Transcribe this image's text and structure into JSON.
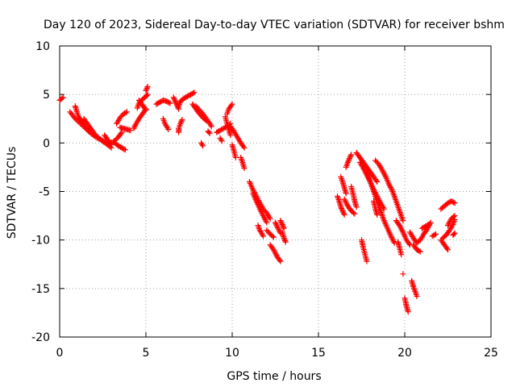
{
  "chart_data": {
    "type": "scatter",
    "title": "Day 120 of 2023, Sidereal Day-to-day VTEC variation (SDTVAR) for receiver bshm",
    "xlabel": "GPS time / hours",
    "ylabel": "SDTVAR / TECUs",
    "xlim": [
      0,
      25
    ],
    "ylim": [
      -20,
      10
    ],
    "xticks": [
      0,
      5,
      10,
      15,
      20,
      25
    ],
    "yticks": [
      -20,
      -15,
      -10,
      -5,
      0,
      5,
      10
    ],
    "grid": true,
    "marker": "+",
    "color": "#ff0000",
    "segments": [
      [
        [
          0.0,
          4.4
        ],
        [
          0.2,
          4.7
        ]
      ],
      [
        [
          0.6,
          3.2
        ],
        [
          0.9,
          2.5
        ],
        [
          1.2,
          2.0
        ],
        [
          1.5,
          1.5
        ],
        [
          1.8,
          1.0
        ],
        [
          2.1,
          0.6
        ],
        [
          2.4,
          0.3
        ],
        [
          2.7,
          -0.1
        ],
        [
          3.0,
          -0.5
        ]
      ],
      [
        [
          0.9,
          3.8
        ],
        [
          1.0,
          3.2
        ],
        [
          1.1,
          2.7
        ],
        [
          1.3,
          2.2
        ],
        [
          1.5,
          1.6
        ],
        [
          1.7,
          1.2
        ]
      ],
      [
        [
          1.4,
          2.5
        ],
        [
          1.6,
          2.0
        ],
        [
          1.8,
          1.5
        ],
        [
          2.0,
          1.0
        ],
        [
          2.2,
          0.6
        ],
        [
          2.5,
          0.2
        ],
        [
          2.8,
          0.0
        ],
        [
          3.1,
          0.1
        ],
        [
          3.4,
          0.6
        ],
        [
          3.6,
          1.1
        ]
      ],
      [
        [
          2.6,
          0.8
        ],
        [
          2.8,
          0.3
        ],
        [
          3.0,
          -0.2
        ]
      ],
      [
        [
          3.2,
          0.0
        ],
        [
          3.4,
          -0.3
        ],
        [
          3.6,
          -0.5
        ],
        [
          3.8,
          -0.7
        ]
      ],
      [
        [
          3.3,
          2.0
        ],
        [
          3.5,
          2.6
        ],
        [
          3.7,
          3.0
        ],
        [
          3.9,
          3.2
        ]
      ],
      [
        [
          3.5,
          1.6
        ],
        [
          3.7,
          1.5
        ],
        [
          3.9,
          1.4
        ],
        [
          4.1,
          1.3
        ]
      ],
      [
        [
          4.3,
          1.5
        ],
        [
          4.4,
          1.9
        ],
        [
          4.6,
          2.5
        ],
        [
          4.8,
          3.0
        ],
        [
          5.0,
          3.5
        ]
      ],
      [
        [
          4.5,
          3.6
        ],
        [
          4.6,
          4.1
        ],
        [
          4.8,
          4.5
        ],
        [
          5.0,
          4.8
        ],
        [
          5.1,
          5.0
        ]
      ],
      [
        [
          4.6,
          4.4
        ],
        [
          4.8,
          3.9
        ],
        [
          5.0,
          3.4
        ]
      ],
      [
        [
          5.0,
          5.4
        ],
        [
          5.1,
          5.8
        ]
      ],
      [
        [
          5.6,
          4.0
        ],
        [
          5.8,
          4.2
        ],
        [
          6.0,
          4.4
        ],
        [
          6.2,
          4.3
        ],
        [
          6.4,
          4.1
        ]
      ],
      [
        [
          6.0,
          2.5
        ],
        [
          6.1,
          2.0
        ],
        [
          6.2,
          1.7
        ],
        [
          6.3,
          1.4
        ]
      ],
      [
        [
          6.6,
          4.7
        ],
        [
          6.7,
          4.3
        ],
        [
          6.8,
          3.9
        ],
        [
          6.9,
          3.5
        ]
      ],
      [
        [
          6.9,
          3.8
        ],
        [
          7.0,
          4.3
        ],
        [
          7.2,
          4.6
        ],
        [
          7.4,
          4.8
        ],
        [
          7.6,
          5.0
        ],
        [
          7.8,
          5.2
        ]
      ],
      [
        [
          7.1,
          2.4
        ],
        [
          7.0,
          2.0
        ],
        [
          6.9,
          1.5
        ],
        [
          6.9,
          1.1
        ]
      ],
      [
        [
          7.7,
          4.0
        ],
        [
          7.9,
          3.5
        ],
        [
          8.1,
          3.0
        ],
        [
          8.3,
          2.6
        ],
        [
          8.5,
          2.3
        ]
      ],
      [
        [
          7.9,
          3.8
        ],
        [
          8.1,
          3.4
        ],
        [
          8.3,
          3.0
        ],
        [
          8.5,
          2.5
        ],
        [
          8.7,
          2.0
        ],
        [
          8.8,
          1.7
        ]
      ],
      [
        [
          8.6,
          1.2
        ],
        [
          8.7,
          1.0
        ]
      ],
      [
        [
          8.2,
          0.0
        ],
        [
          8.3,
          -0.3
        ]
      ],
      [
        [
          9.1,
          1.1
        ],
        [
          9.3,
          1.3
        ],
        [
          9.6,
          1.6
        ],
        [
          9.9,
          2.0
        ]
      ],
      [
        [
          9.3,
          0.5
        ],
        [
          9.4,
          0.2
        ]
      ],
      [
        [
          9.6,
          2.7
        ],
        [
          9.7,
          2.0
        ],
        [
          9.8,
          1.4
        ],
        [
          9.9,
          0.8
        ]
      ],
      [
        [
          9.7,
          3.0
        ],
        [
          9.8,
          3.5
        ],
        [
          10.0,
          4.0
        ]
      ],
      [
        [
          9.9,
          1.7
        ],
        [
          10.1,
          1.2
        ],
        [
          10.3,
          0.6
        ],
        [
          10.5,
          0.0
        ],
        [
          10.7,
          -0.5
        ]
      ],
      [
        [
          10.0,
          -0.2
        ],
        [
          10.1,
          -0.8
        ],
        [
          10.2,
          -1.5
        ]
      ],
      [
        [
          10.5,
          -1.5
        ],
        [
          10.6,
          -2.0
        ],
        [
          10.7,
          -2.6
        ]
      ],
      [
        [
          11.0,
          -4.0
        ],
        [
          11.2,
          -4.8
        ],
        [
          11.4,
          -5.5
        ],
        [
          11.6,
          -6.2
        ],
        [
          11.8,
          -6.8
        ],
        [
          12.0,
          -7.2
        ],
        [
          12.2,
          -7.8
        ]
      ],
      [
        [
          11.2,
          -5.2
        ],
        [
          11.4,
          -6.0
        ],
        [
          11.6,
          -6.8
        ],
        [
          11.8,
          -7.5
        ],
        [
          12.0,
          -8.2
        ]
      ],
      [
        [
          11.5,
          -8.5
        ],
        [
          11.6,
          -9.0
        ],
        [
          11.8,
          -9.6
        ]
      ],
      [
        [
          12.0,
          -9.0
        ],
        [
          12.2,
          -9.4
        ],
        [
          12.4,
          -9.7
        ]
      ],
      [
        [
          12.2,
          -10.5
        ],
        [
          12.4,
          -11.0
        ],
        [
          12.6,
          -11.7
        ],
        [
          12.8,
          -12.2
        ]
      ],
      [
        [
          12.5,
          -8.2
        ],
        [
          12.6,
          -8.6
        ],
        [
          12.8,
          -9.3
        ]
      ],
      [
        [
          12.8,
          -8.0
        ],
        [
          12.9,
          -8.4
        ],
        [
          13.0,
          -8.8
        ]
      ],
      [
        [
          12.9,
          -9.2
        ],
        [
          13.0,
          -9.8
        ],
        [
          13.1,
          -10.2
        ]
      ],
      [
        [
          16.1,
          -5.5
        ],
        [
          16.2,
          -6.0
        ],
        [
          16.3,
          -6.6
        ],
        [
          16.4,
          -7.0
        ],
        [
          16.5,
          -7.4
        ]
      ],
      [
        [
          16.3,
          -3.5
        ],
        [
          16.4,
          -4.0
        ],
        [
          16.5,
          -4.6
        ],
        [
          16.6,
          -5.2
        ]
      ],
      [
        [
          16.6,
          -2.5
        ],
        [
          16.7,
          -2.0
        ],
        [
          16.8,
          -1.6
        ],
        [
          16.9,
          -1.2
        ]
      ],
      [
        [
          16.5,
          -5.8
        ],
        [
          16.7,
          -6.5
        ],
        [
          16.9,
          -7.0
        ],
        [
          17.1,
          -7.3
        ]
      ],
      [
        [
          16.9,
          -4.5
        ],
        [
          17.0,
          -5.2
        ],
        [
          17.1,
          -6.0
        ],
        [
          17.2,
          -6.6
        ]
      ],
      [
        [
          17.2,
          -1.0
        ],
        [
          17.4,
          -1.5
        ],
        [
          17.6,
          -2.0
        ],
        [
          17.8,
          -2.5
        ],
        [
          18.0,
          -3.0
        ],
        [
          18.2,
          -3.5
        ],
        [
          18.4,
          -4.0
        ]
      ],
      [
        [
          17.4,
          -2.0
        ],
        [
          17.6,
          -2.6
        ],
        [
          17.8,
          -3.3
        ],
        [
          18.0,
          -4.0
        ],
        [
          18.2,
          -4.8
        ],
        [
          18.4,
          -5.5
        ],
        [
          18.6,
          -6.2
        ],
        [
          18.8,
          -6.8
        ]
      ],
      [
        [
          17.8,
          -3.0
        ],
        [
          18.0,
          -4.0
        ],
        [
          18.2,
          -5.0
        ],
        [
          18.4,
          -6.0
        ],
        [
          18.6,
          -7.0
        ],
        [
          18.8,
          -8.0
        ],
        [
          19.0,
          -8.8
        ],
        [
          19.2,
          -9.6
        ],
        [
          19.4,
          -10.3
        ]
      ],
      [
        [
          17.5,
          -10.0
        ],
        [
          17.6,
          -10.8
        ],
        [
          17.7,
          -11.5
        ],
        [
          17.8,
          -12.2
        ]
      ],
      [
        [
          18.2,
          -6.0
        ],
        [
          18.3,
          -6.8
        ],
        [
          18.4,
          -7.4
        ]
      ],
      [
        [
          18.3,
          -1.8
        ],
        [
          18.5,
          -2.2
        ],
        [
          18.7,
          -2.8
        ],
        [
          18.9,
          -3.5
        ],
        [
          19.1,
          -4.3
        ],
        [
          19.3,
          -5.0
        ],
        [
          19.5,
          -6.0
        ],
        [
          19.7,
          -7.0
        ],
        [
          19.9,
          -8.0
        ]
      ],
      [
        [
          19.5,
          -8.0
        ],
        [
          19.7,
          -8.5
        ],
        [
          19.9,
          -9.2
        ],
        [
          20.1,
          -10.0
        ],
        [
          20.3,
          -10.5
        ]
      ],
      [
        [
          19.6,
          -10.2
        ],
        [
          19.7,
          -10.8
        ],
        [
          19.8,
          -11.5
        ]
      ],
      [
        [
          19.9,
          -13.5
        ]
      ],
      [
        [
          20.0,
          -16.0
        ],
        [
          20.1,
          -16.8
        ],
        [
          20.2,
          -17.4
        ]
      ],
      [
        [
          20.4,
          -14.2
        ],
        [
          20.5,
          -14.8
        ],
        [
          20.6,
          -15.3
        ],
        [
          20.7,
          -15.8
        ]
      ],
      [
        [
          20.3,
          -9.2
        ],
        [
          20.5,
          -9.8
        ],
        [
          20.7,
          -10.3
        ],
        [
          20.9,
          -10.0
        ],
        [
          21.1,
          -9.4
        ],
        [
          21.3,
          -8.9
        ],
        [
          21.5,
          -8.2
        ]
      ],
      [
        [
          20.5,
          -10.5
        ],
        [
          20.7,
          -11.0
        ],
        [
          20.9,
          -11.2
        ]
      ],
      [
        [
          21.0,
          -8.8
        ],
        [
          21.2,
          -8.6
        ],
        [
          21.4,
          -8.4
        ]
      ],
      [
        [
          21.6,
          -9.6
        ],
        [
          21.8,
          -9.4
        ]
      ],
      [
        [
          22.1,
          -6.8
        ],
        [
          22.3,
          -6.5
        ],
        [
          22.5,
          -6.2
        ],
        [
          22.7,
          -6.0
        ],
        [
          22.9,
          -6.2
        ]
      ],
      [
        [
          22.1,
          -10.0
        ],
        [
          22.3,
          -10.5
        ],
        [
          22.5,
          -11.0
        ]
      ],
      [
        [
          22.2,
          -9.8
        ],
        [
          22.4,
          -9.5
        ],
        [
          22.6,
          -9.0
        ],
        [
          22.8,
          -8.4
        ],
        [
          22.9,
          -7.9
        ]
      ],
      [
        [
          22.5,
          -8.5
        ],
        [
          22.7,
          -7.8
        ],
        [
          22.9,
          -7.5
        ]
      ],
      [
        [
          22.8,
          -9.5
        ],
        [
          22.9,
          -9.3
        ]
      ]
    ]
  }
}
